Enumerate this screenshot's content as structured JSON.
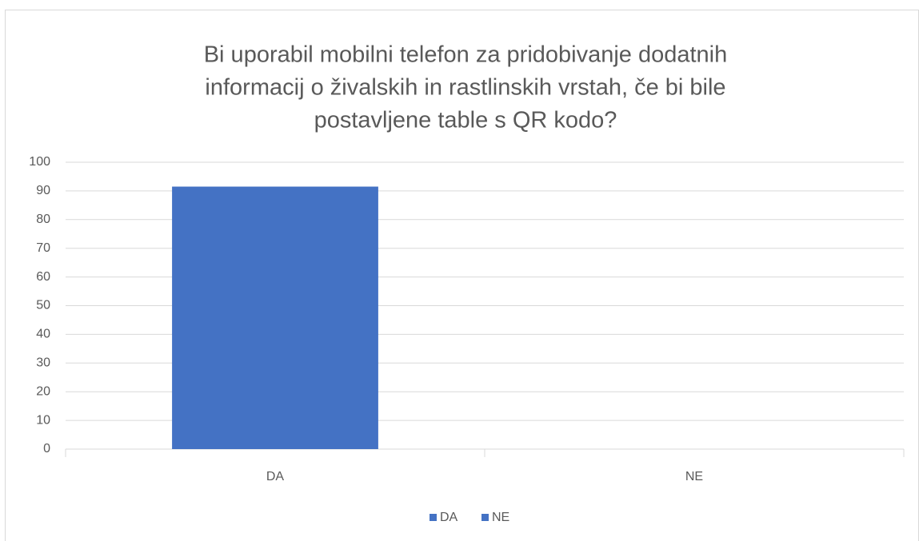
{
  "chart_data": {
    "type": "bar",
    "title": [
      "Bi uporabil mobilni telefon za pridobivanje dodatnih",
      "informacij o živalskih in rastlinskih vrstah, če bi bile",
      "postavljene table s QR kodo?"
    ],
    "categories": [
      "DA",
      "NE"
    ],
    "values": [
      91.5,
      0
    ],
    "colors": [
      "#4472c4",
      "#4472c4"
    ],
    "ylim": [
      0,
      100
    ],
    "yticks": [
      0,
      10,
      20,
      30,
      40,
      50,
      60,
      70,
      80,
      90,
      100
    ],
    "grid": true,
    "legend": "bottom"
  }
}
